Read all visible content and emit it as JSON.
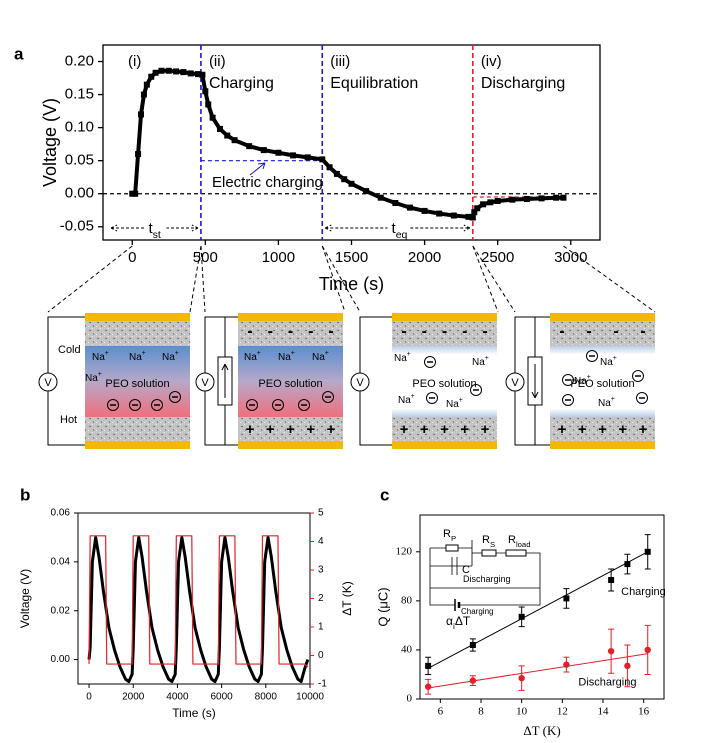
{
  "chart_data": [
    {
      "panel": "a",
      "type": "line",
      "marker": "square",
      "x_label": "Time (s)",
      "y_label": "Voltage (V)",
      "xlim": [
        -200,
        3200
      ],
      "ylim": [
        -0.07,
        0.225
      ],
      "xticks": [
        0,
        500,
        1000,
        1500,
        2000,
        2500,
        3000
      ],
      "yticks": [
        -0.05,
        {
          "value": 0,
          "label": "0.00"
        },
        0.05,
        {
          "value": 0.1,
          "label": "0.10"
        },
        0.15,
        {
          "value": 0.2,
          "label": "0.20"
        }
      ],
      "color": "#000000",
      "x": [
        0,
        20,
        40,
        60,
        80,
        100,
        130,
        160,
        200,
        250,
        300,
        350,
        400,
        450,
        480,
        500,
        520,
        550,
        600,
        650,
        700,
        800,
        900,
        1000,
        1100,
        1200,
        1300,
        1350,
        1400,
        1450,
        1500,
        1600,
        1700,
        1800,
        1900,
        2000,
        2100,
        2200,
        2300,
        2330,
        2340,
        2360,
        2400,
        2450,
        2500,
        2600,
        2700,
        2800,
        2900,
        2950
      ],
      "values": [
        0,
        0,
        0.06,
        0.12,
        0.15,
        0.165,
        0.177,
        0.183,
        0.186,
        0.186,
        0.185,
        0.184,
        0.182,
        0.181,
        0.18,
        0.155,
        0.135,
        0.115,
        0.098,
        0.088,
        0.081,
        0.072,
        0.066,
        0.062,
        0.058,
        0.055,
        0.052,
        0.04,
        0.03,
        0.022,
        0.015,
        0.004,
        -0.006,
        -0.014,
        -0.021,
        -0.026,
        -0.03,
        -0.033,
        -0.035,
        -0.036,
        -0.028,
        -0.022,
        -0.016,
        -0.013,
        -0.011,
        -0.009,
        -0.008,
        -0.007,
        -0.006,
        -0.006
      ],
      "boundaries": [
        {
          "x": 470,
          "color": "#1a1acc"
        },
        {
          "x": 1300,
          "color": "#1a1acc"
        },
        {
          "x": 2330,
          "color": "#e0202a"
        }
      ],
      "phases": [
        {
          "label": "(i)"
        },
        {
          "label": "(ii)",
          "name": "Charging",
          "color": "#1a1acc"
        },
        {
          "label": "(iii)",
          "name": "Equilibration",
          "color": "#000000"
        },
        {
          "label": "(iv)",
          "name": "Discharging",
          "color": "#e0202a"
        }
      ],
      "reference_lines": [
        {
          "y": 0,
          "color": "#000000"
        },
        {
          "y": 0.05,
          "x": [
            470,
            1300
          ],
          "color": "#1a1acc"
        },
        {
          "y": -0.005,
          "x": [
            2330,
            2950
          ],
          "color": "#e0202a"
        }
      ],
      "annotation": "Electric charging",
      "t_st": {
        "text": "t",
        "sub": "st"
      },
      "t_eq": {
        "text": "t",
        "sub": "eq"
      }
    },
    {
      "panel": "b",
      "type": "line",
      "x_label": "Time (s)",
      "y_label": "Voltage (V)",
      "y2_label": "ΔT (K)",
      "y2_color": "#e0202a",
      "xlim": [
        -500,
        10000
      ],
      "ylim": [
        -0.01,
        0.06
      ],
      "y2lim": [
        -1,
        5
      ],
      "xticks": [
        0,
        2000,
        4000,
        6000,
        8000,
        10000
      ],
      "yticks": [
        {
          "value": 0,
          "label": "0.00"
        },
        0.02,
        0.04,
        0.06
      ],
      "y2ticks": [
        -1,
        0,
        1,
        2,
        3,
        4,
        5
      ],
      "x": [
        0,
        50,
        150,
        300,
        450,
        650,
        750,
        800,
        900,
        1150,
        1400,
        1650,
        1800,
        1950,
        2000,
        2100,
        2250,
        2400,
        2600,
        2700,
        2750,
        2850,
        3100,
        3350,
        3600,
        3750,
        3900,
        3950,
        4050,
        4200,
        4350,
        4550,
        4650,
        4700,
        4800,
        5050,
        5300,
        5550,
        5700,
        5850,
        5900,
        6000,
        6150,
        6300,
        6500,
        6600,
        6650,
        6750,
        7000,
        7250,
        7500,
        7650,
        7800,
        7850,
        7950,
        8100,
        8250,
        8450,
        8550,
        8600,
        8700,
        8950,
        9200,
        9450,
        9600,
        9750,
        9900
      ],
      "series": [
        {
          "color": "#000000",
          "values": [
            0,
            0.005,
            0.04,
            0.05,
            0.042,
            0.028,
            0.022,
            0.019,
            0.013,
            0.004,
            -0.003,
            -0.008,
            -0.009,
            -0.006,
            0.005,
            0.04,
            0.05,
            0.042,
            0.028,
            0.022,
            0.019,
            0.013,
            0.004,
            -0.003,
            -0.008,
            -0.009,
            -0.006,
            0.005,
            0.04,
            0.05,
            0.042,
            0.028,
            0.022,
            0.019,
            0.013,
            0.004,
            -0.003,
            -0.008,
            -0.009,
            -0.006,
            0.005,
            0.04,
            0.05,
            0.042,
            0.028,
            0.022,
            0.019,
            0.013,
            0.004,
            -0.003,
            -0.008,
            -0.009,
            -0.006,
            0.005,
            0.04,
            0.05,
            0.042,
            0.028,
            0.022,
            0.019,
            0.013,
            0.004,
            -0.003,
            -0.008,
            -0.009,
            -0.004,
            0
          ]
        },
        {
          "color": "#e0202a",
          "axis": "y2",
          "values": [
            -0.3,
            4.2,
            4.2,
            4.2,
            4.2,
            4.2,
            4.2,
            -0.3,
            -0.3,
            -0.3,
            -0.3,
            -0.3,
            -0.3,
            -0.3,
            4.2,
            4.2,
            4.2,
            4.2,
            4.2,
            4.2,
            -0.3,
            -0.3,
            -0.3,
            -0.3,
            -0.3,
            -0.3,
            -0.3,
            4.2,
            4.2,
            4.2,
            4.2,
            4.2,
            4.2,
            -0.3,
            -0.3,
            -0.3,
            -0.3,
            -0.3,
            -0.3,
            -0.3,
            4.2,
            4.2,
            4.2,
            4.2,
            4.2,
            4.2,
            -0.3,
            -0.3,
            -0.3,
            -0.3,
            -0.3,
            -0.3,
            -0.3,
            4.2,
            4.2,
            4.2,
            4.2,
            4.2,
            4.2,
            -0.3,
            -0.3,
            -0.3,
            -0.3,
            -0.3,
            -0.3,
            -0.3,
            -0.4
          ]
        }
      ]
    },
    {
      "panel": "c",
      "type": "scatter",
      "x_label": "ΔT (K)",
      "y_label": "Q (μC)",
      "xlim": [
        5,
        17
      ],
      "ylim": [
        0,
        150
      ],
      "xticks": [
        6,
        8,
        10,
        12,
        14,
        16
      ],
      "yticks": [
        0,
        40,
        80,
        120
      ],
      "x": [
        5.4,
        7.6,
        10,
        12.2,
        14.4,
        15.2,
        16.2
      ],
      "series": [
        {
          "name": "Charging",
          "color": "#000000",
          "marker": "square",
          "values": [
            27,
            44,
            67,
            82,
            97,
            110,
            120
          ],
          "errors": [
            7,
            5,
            8,
            8,
            9,
            8,
            14
          ],
          "fit": {
            "x": [
              5.4,
              16.2
            ],
            "values": [
              25,
              120
            ]
          }
        },
        {
          "name": "Discharging",
          "color": "#e0202a",
          "marker": "circle",
          "values": [
            10,
            15,
            17,
            28,
            39,
            27,
            40
          ],
          "errors": [
            6,
            4,
            10,
            6,
            18,
            17,
            20
          ],
          "fit": {
            "x": [
              5.4,
              16.2
            ],
            "values": [
              9,
              37
            ]
          }
        }
      ],
      "inset_labels": [
        {
          "text": "R",
          "sub": "P"
        },
        {
          "text": "R",
          "sub": "S"
        },
        {
          "text": "R",
          "sub": "load"
        },
        {
          "text": "C"
        },
        {
          "text": "Discharging"
        },
        {
          "text": "Charging"
        },
        {
          "text": "α",
          "sub": "i",
          "after": "ΔT"
        }
      ]
    }
  ],
  "diagrams": {
    "cold": "Cold",
    "hot": "Hot",
    "solution": "PEO solution",
    "ion": "Na",
    "plus": "+",
    "minus": "-",
    "voltmeter": "V"
  }
}
